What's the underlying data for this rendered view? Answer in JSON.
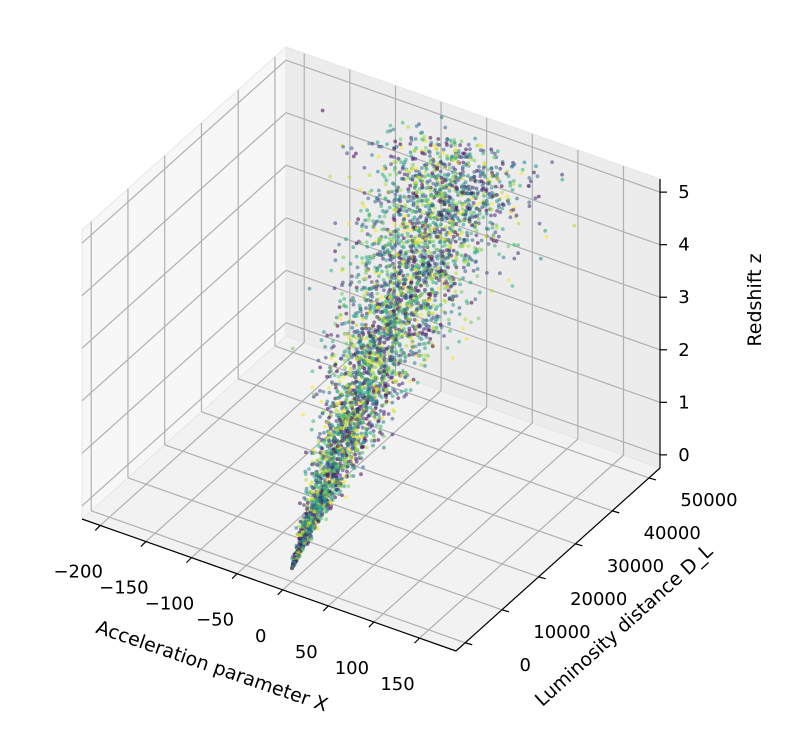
{
  "chart_data": {
    "type": "scatter",
    "projection": "3d",
    "title": "",
    "colormap": "viridis",
    "x_axis": {
      "label": "Acceleration parameter X",
      "ticks": [
        "−200",
        "−150",
        "−100",
        "−50",
        "0",
        "50",
        "100",
        "150"
      ],
      "tick_values": [
        -200,
        -150,
        -100,
        -50,
        0,
        50,
        100,
        150
      ],
      "range": [
        -220,
        190
      ]
    },
    "y_axis": {
      "label": "Luminosity distance D_L",
      "ticks": [
        "0",
        "10000",
        "20000",
        "30000",
        "40000",
        "50000"
      ],
      "tick_values": [
        0,
        10000,
        20000,
        30000,
        40000,
        50000
      ],
      "range": [
        -2500,
        53000
      ]
    },
    "z_axis": {
      "label": "Redshift z",
      "ticks": [
        "0",
        "1",
        "2",
        "3",
        "4",
        "5"
      ],
      "tick_values": [
        0,
        1,
        2,
        3,
        4,
        5
      ],
      "range": [
        -0.25,
        5.25
      ]
    },
    "grid": true,
    "point_cloud": {
      "count": 4200,
      "z_range": [
        0,
        5
      ],
      "luminosity_distance_per_redshift": 10000,
      "x_spread_at_z5": 110,
      "x_center": 0
    }
  }
}
